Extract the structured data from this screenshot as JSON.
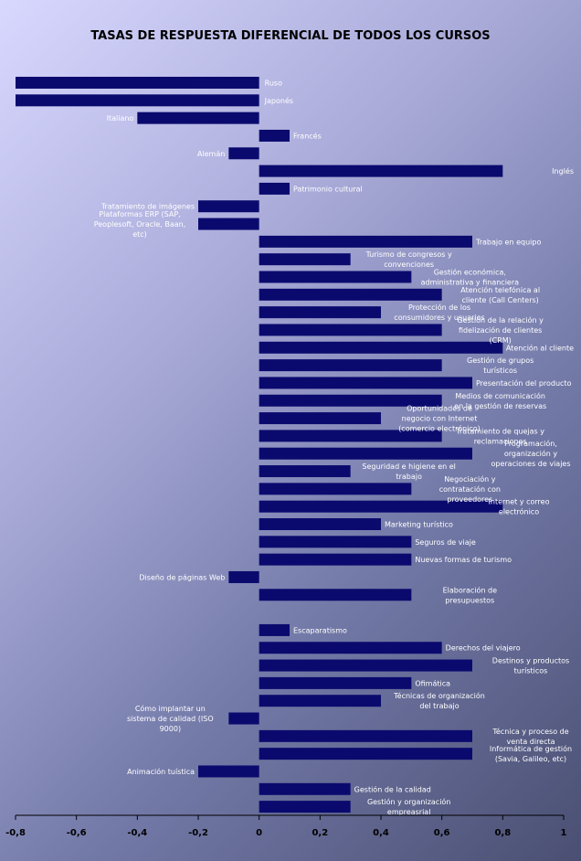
{
  "chart_data": {
    "type": "bar",
    "orientation": "horizontal",
    "title": "TASAS DE RESPUESTA DIFERENCIAL DE TODOS LOS CURSOS",
    "xlim": [
      -0.8,
      1
    ],
    "xticks": [
      "-0,8",
      "-0,6",
      "-0,4",
      "-0,2",
      "0",
      "0,2",
      "0,4",
      "0,6",
      "0,8",
      "1"
    ],
    "grid": false,
    "bar_color": "#0a0a6e",
    "categories": [
      "Ruso",
      "Japonés",
      "Italiano",
      "Francés",
      "Alemán",
      "Inglés",
      "Patrimonio cultural",
      "Tratamiento de imágenes",
      "Plataformas ERP (SAP, Peoplesoft, Oracle, Baan, etc)",
      "Trabajo en equipo",
      "Turismo de congresos y convenciones",
      "Gestión económica, administrativa y financiera",
      "Atención telefónica al cliente (Call Centers)",
      "Protección de los consumidores y usuarios",
      "Gestión de la relación y fidelización de clientes (CRM)",
      "Atención al cliente",
      "Gestión de grupos turísticos",
      "Presentación del producto",
      "Medios de comunicación en la gestión de reservas",
      "Oportunidades de negocio con Internet (comercio electrónico)",
      "Tratamiento de quejas y reclamaciones",
      "Programación, organización y operaciones de viajes",
      "Seguridad e higiene en el trabajo",
      "Negociación y contratación con proveedores",
      "Internet y correo electrónico",
      "Marketing turístico",
      "Seguros de viaje",
      "Nuevas formas de turismo",
      "Diseño de páginas Web",
      "Elaboración de presupuestos",
      "",
      "Escaparatismo",
      "Derechos del viajero",
      "Destinos y productos turísticos",
      "Ofimática",
      "Técnicas de organización del trabajo",
      "Cómo implantar un sistema de calidad (ISO 9000)",
      "Técnica y proceso de venta directa",
      "Informática de gestión (Savia, Galileo, etc)",
      "Animación tuística",
      "Gestión de la calidad",
      "Gestión y organización empreasrial"
    ],
    "values": [
      -0.8,
      -0.8,
      -0.4,
      0.1,
      -0.1,
      0.8,
      0.1,
      -0.2,
      -0.2,
      0.7,
      0.3,
      0.5,
      0.6,
      0.4,
      0.6,
      0.8,
      0.6,
      0.7,
      0.6,
      0.4,
      0.6,
      0.7,
      0.3,
      0.5,
      0.8,
      0.4,
      0.5,
      0.5,
      -0.1,
      0.5,
      0.0,
      0.1,
      0.6,
      0.7,
      0.5,
      0.4,
      -0.1,
      0.7,
      0.7,
      -0.2,
      0.3,
      0.3
    ]
  }
}
